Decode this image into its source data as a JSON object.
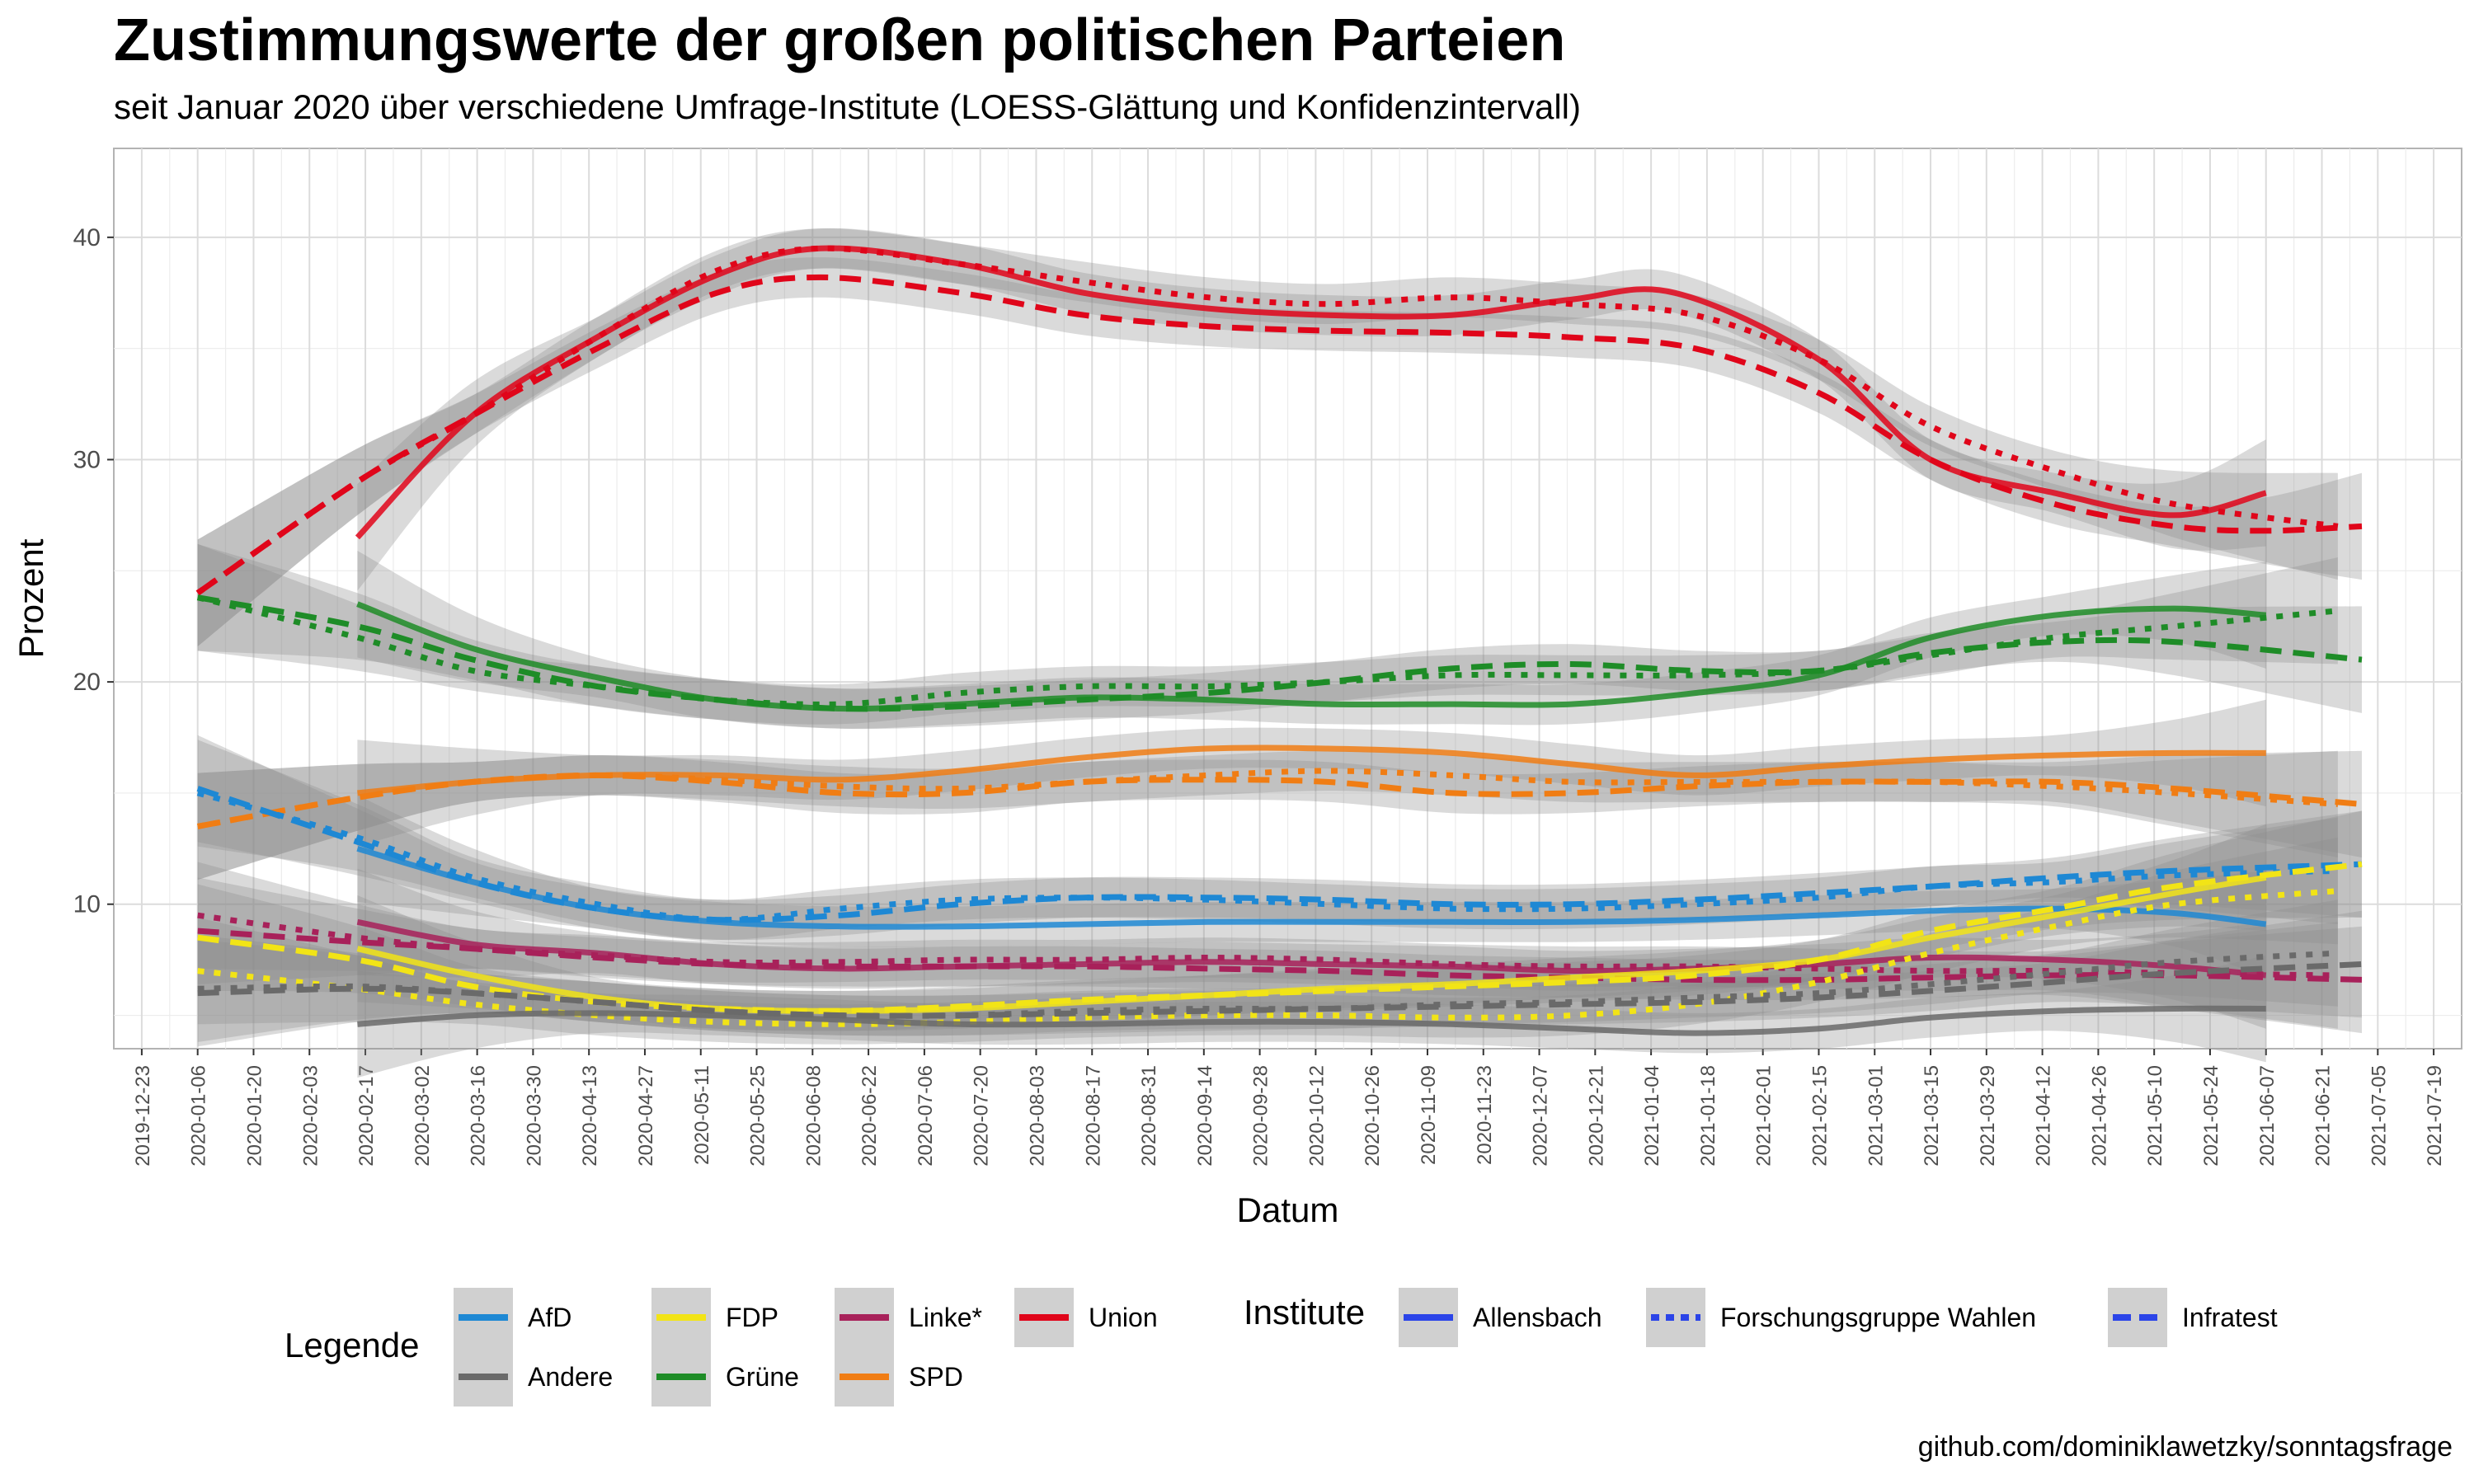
{
  "chart_data": {
    "type": "line",
    "title": "Zustimmungswerte der großen politischen Parteien",
    "subtitle": "seit Januar 2020 über verschiedene Umfrage-Institute (LOESS-Glättung und Konfidenzintervall)",
    "xlabel": "Datum",
    "ylabel": "Prozent",
    "caption": "github.com/dominiklawetzky/sonntagsfrage",
    "xlim": [
      "2019-12-16",
      "2021-07-26"
    ],
    "ylim": [
      3.5,
      44
    ],
    "y_ticks": [
      10,
      20,
      30,
      40
    ],
    "x_ticks": [
      "2019-12-23",
      "2020-01-06",
      "2020-01-20",
      "2020-02-03",
      "2020-02-17",
      "2020-03-02",
      "2020-03-16",
      "2020-03-30",
      "2020-04-13",
      "2020-04-27",
      "2020-05-11",
      "2020-05-25",
      "2020-06-08",
      "2020-06-22",
      "2020-07-06",
      "2020-07-20",
      "2020-08-03",
      "2020-08-17",
      "2020-08-31",
      "2020-09-14",
      "2020-09-28",
      "2020-10-12",
      "2020-10-26",
      "2020-11-09",
      "2020-11-23",
      "2020-12-07",
      "2020-12-21",
      "2021-01-04",
      "2021-01-18",
      "2021-02-01",
      "2021-02-15",
      "2021-03-01",
      "2021-03-15",
      "2021-03-29",
      "2021-04-12",
      "2021-04-26",
      "2021-05-10",
      "2021-05-24",
      "2021-06-07",
      "2021-06-21",
      "2021-07-05",
      "2021-07-19"
    ],
    "grid": true,
    "legend_position": "bottom",
    "legend_party_title": "Legende",
    "legend_institute_title": "Institute",
    "parties": [
      {
        "name": "AfD",
        "color": "#1e88d4"
      },
      {
        "name": "Andere",
        "color": "#6a6a6a"
      },
      {
        "name": "FDP",
        "color": "#f2e416"
      },
      {
        "name": "Grüne",
        "color": "#1e8c27"
      },
      {
        "name": "Linke*",
        "color": "#a8215a"
      },
      {
        "name": "SPD",
        "color": "#f07d14"
      },
      {
        "name": "Union",
        "color": "#e0051a"
      }
    ],
    "institutes": [
      {
        "name": "Allensbach",
        "linetype": "solid",
        "color": "#2b44e8"
      },
      {
        "name": "Forschungsgruppe Wahlen",
        "linetype": "dotted",
        "color": "#2b44e8"
      },
      {
        "name": "Infratest",
        "linetype": "dashed",
        "color": "#2b44e8"
      }
    ],
    "series": [
      {
        "party": "Union",
        "institute": "Allensbach",
        "x": [
          "2020-02-15",
          "2020-03-15",
          "2020-04-15",
          "2020-05-15",
          "2020-06-10",
          "2020-07-15",
          "2020-08-15",
          "2020-09-15",
          "2020-10-15",
          "2020-11-15",
          "2020-12-15",
          "2021-01-10",
          "2021-02-15",
          "2021-03-15",
          "2021-04-15",
          "2021-05-15",
          "2021-06-07"
        ],
        "y": [
          26.5,
          32.0,
          35.5,
          38.3,
          39.5,
          38.8,
          37.5,
          36.8,
          36.5,
          36.5,
          37.2,
          37.5,
          34.5,
          30.0,
          28.5,
          27.5,
          28.5
        ]
      },
      {
        "party": "Union",
        "institute": "Forschungsgruppe Wahlen",
        "x": [
          "2020-01-06",
          "2020-02-15",
          "2020-03-15",
          "2020-04-15",
          "2020-05-15",
          "2020-06-10",
          "2020-07-15",
          "2020-08-15",
          "2020-09-15",
          "2020-10-15",
          "2020-11-15",
          "2020-12-15",
          "2021-01-15",
          "2021-02-15",
          "2021-03-15",
          "2021-04-15",
          "2021-05-15",
          "2021-06-25"
        ],
        "y": [
          24.0,
          29.0,
          32.0,
          35.5,
          38.5,
          39.5,
          38.8,
          38.0,
          37.3,
          37.0,
          37.3,
          37.0,
          36.5,
          34.5,
          31.5,
          29.5,
          28.0,
          27.0
        ]
      },
      {
        "party": "Union",
        "institute": "Infratest",
        "x": [
          "2020-01-06",
          "2020-02-15",
          "2020-03-15",
          "2020-04-15",
          "2020-05-15",
          "2020-06-10",
          "2020-07-15",
          "2020-08-15",
          "2020-09-15",
          "2020-10-15",
          "2020-11-15",
          "2020-12-15",
          "2021-01-15",
          "2021-02-15",
          "2021-03-15",
          "2021-04-15",
          "2021-05-15",
          "2021-06-07",
          "2021-07-01"
        ],
        "y": [
          24.0,
          29.0,
          32.0,
          35.0,
          37.5,
          38.2,
          37.5,
          36.5,
          36.0,
          35.8,
          35.7,
          35.5,
          35.0,
          33.0,
          30.0,
          28.0,
          27.0,
          26.8,
          27.0
        ]
      },
      {
        "party": "Grüne",
        "institute": "Allensbach",
        "x": [
          "2020-02-15",
          "2020-03-15",
          "2020-04-15",
          "2020-05-15",
          "2020-06-15",
          "2020-07-15",
          "2020-08-15",
          "2020-09-15",
          "2020-10-15",
          "2020-11-15",
          "2020-12-15",
          "2021-01-15",
          "2021-02-15",
          "2021-03-15",
          "2021-04-15",
          "2021-05-15",
          "2021-06-07"
        ],
        "y": [
          23.5,
          21.5,
          20.2,
          19.2,
          18.8,
          19.0,
          19.3,
          19.2,
          19.0,
          19.0,
          19.0,
          19.5,
          20.3,
          22.0,
          23.0,
          23.3,
          23.0
        ]
      },
      {
        "party": "Grüne",
        "institute": "Forschungsgruppe Wahlen",
        "x": [
          "2020-01-06",
          "2020-02-15",
          "2020-03-15",
          "2020-04-15",
          "2020-05-15",
          "2020-06-15",
          "2020-07-15",
          "2020-08-15",
          "2020-09-15",
          "2020-10-15",
          "2020-11-15",
          "2020-12-15",
          "2021-01-15",
          "2021-02-15",
          "2021-03-15",
          "2021-04-15",
          "2021-05-15",
          "2021-06-25"
        ],
        "y": [
          23.8,
          22.0,
          20.5,
          19.8,
          19.2,
          19.0,
          19.5,
          19.8,
          19.8,
          20.0,
          20.3,
          20.3,
          20.3,
          20.5,
          21.2,
          22.0,
          22.5,
          23.2
        ]
      },
      {
        "party": "Grüne",
        "institute": "Infratest",
        "x": [
          "2020-01-06",
          "2020-02-15",
          "2020-03-15",
          "2020-04-15",
          "2020-05-15",
          "2020-06-15",
          "2020-07-15",
          "2020-08-15",
          "2020-09-15",
          "2020-10-15",
          "2020-11-15",
          "2020-12-15",
          "2021-01-15",
          "2021-02-15",
          "2021-03-15",
          "2021-04-15",
          "2021-05-15",
          "2021-07-01"
        ],
        "y": [
          23.8,
          22.5,
          21.0,
          19.8,
          19.2,
          18.8,
          18.9,
          19.2,
          19.5,
          20.0,
          20.6,
          20.8,
          20.5,
          20.5,
          21.3,
          21.8,
          21.8,
          21.0
        ]
      },
      {
        "party": "SPD",
        "institute": "Allensbach",
        "x": [
          "2020-02-15",
          "2020-03-15",
          "2020-04-15",
          "2020-05-15",
          "2020-06-15",
          "2020-07-15",
          "2020-08-15",
          "2020-09-15",
          "2020-10-15",
          "2020-11-15",
          "2020-12-15",
          "2021-01-15",
          "2021-02-15",
          "2021-03-15",
          "2021-04-15",
          "2021-05-15",
          "2021-06-07"
        ],
        "y": [
          15.0,
          15.5,
          15.8,
          15.8,
          15.6,
          16.0,
          16.6,
          17.0,
          17.0,
          16.8,
          16.3,
          15.8,
          16.2,
          16.5,
          16.7,
          16.8,
          16.8
        ]
      },
      {
        "party": "SPD",
        "institute": "Forschungsgruppe Wahlen",
        "x": [
          "2020-01-06",
          "2020-02-15",
          "2020-03-15",
          "2020-04-15",
          "2020-05-15",
          "2020-06-15",
          "2020-07-15",
          "2020-08-15",
          "2020-09-15",
          "2020-10-15",
          "2020-11-15",
          "2020-12-15",
          "2021-01-15",
          "2021-02-15",
          "2021-03-15",
          "2021-04-15",
          "2021-05-15",
          "2021-06-25"
        ],
        "y": [
          13.5,
          14.8,
          15.5,
          15.8,
          15.6,
          15.3,
          15.2,
          15.5,
          15.8,
          16.0,
          15.8,
          15.5,
          15.5,
          15.5,
          15.5,
          15.3,
          15.0,
          14.5
        ]
      },
      {
        "party": "SPD",
        "institute": "Infratest",
        "x": [
          "2020-01-06",
          "2020-02-15",
          "2020-03-15",
          "2020-04-15",
          "2020-05-15",
          "2020-06-15",
          "2020-07-15",
          "2020-08-15",
          "2020-09-15",
          "2020-10-15",
          "2020-11-15",
          "2020-12-15",
          "2021-01-15",
          "2021-02-15",
          "2021-03-15",
          "2021-04-15",
          "2021-05-15",
          "2021-07-01"
        ],
        "y": [
          13.5,
          14.8,
          15.5,
          15.8,
          15.5,
          15.0,
          15.0,
          15.5,
          15.6,
          15.5,
          15.0,
          15.0,
          15.3,
          15.5,
          15.5,
          15.5,
          15.2,
          14.5
        ]
      },
      {
        "party": "AfD",
        "institute": "Allensbach",
        "x": [
          "2020-02-15",
          "2020-03-15",
          "2020-04-15",
          "2020-05-15",
          "2020-06-15",
          "2020-07-15",
          "2020-08-15",
          "2020-09-15",
          "2020-10-15",
          "2020-11-15",
          "2020-12-15",
          "2021-01-15",
          "2021-02-15",
          "2021-03-15",
          "2021-04-15",
          "2021-05-15",
          "2021-06-07"
        ],
        "y": [
          12.5,
          11.0,
          9.8,
          9.2,
          9.0,
          9.0,
          9.1,
          9.2,
          9.2,
          9.2,
          9.2,
          9.3,
          9.5,
          9.7,
          9.8,
          9.6,
          9.1
        ]
      },
      {
        "party": "AfD",
        "institute": "Forschungsgruppe Wahlen",
        "x": [
          "2020-01-06",
          "2020-02-15",
          "2020-03-15",
          "2020-04-15",
          "2020-05-15",
          "2020-06-15",
          "2020-07-15",
          "2020-08-15",
          "2020-09-15",
          "2020-10-15",
          "2020-11-15",
          "2020-12-15",
          "2021-01-15",
          "2021-02-15",
          "2021-03-15",
          "2021-04-15",
          "2021-05-15",
          "2021-06-25"
        ],
        "y": [
          15.0,
          13.0,
          11.2,
          10.0,
          9.3,
          9.8,
          10.2,
          10.3,
          10.2,
          10.0,
          9.8,
          9.8,
          10.0,
          10.3,
          10.8,
          11.0,
          11.3,
          11.5
        ]
      },
      {
        "party": "AfD",
        "institute": "Infratest",
        "x": [
          "2020-01-06",
          "2020-02-15",
          "2020-03-15",
          "2020-04-15",
          "2020-05-15",
          "2020-06-15",
          "2020-07-15",
          "2020-08-15",
          "2020-09-15",
          "2020-10-15",
          "2020-11-15",
          "2020-12-15",
          "2021-01-15",
          "2021-02-15",
          "2021-03-15",
          "2021-04-15",
          "2021-05-15",
          "2021-07-01"
        ],
        "y": [
          15.2,
          12.8,
          11.0,
          9.8,
          9.3,
          9.5,
          10.0,
          10.3,
          10.3,
          10.2,
          10.0,
          10.0,
          10.2,
          10.5,
          10.8,
          11.2,
          11.5,
          11.8
        ]
      },
      {
        "party": "Linke*",
        "institute": "Allensbach",
        "x": [
          "2020-02-15",
          "2020-03-15",
          "2020-04-15",
          "2020-05-15",
          "2020-06-15",
          "2020-07-15",
          "2020-08-15",
          "2020-09-15",
          "2020-10-15",
          "2020-11-15",
          "2020-12-15",
          "2021-01-15",
          "2021-02-15",
          "2021-03-15",
          "2021-04-15",
          "2021-05-15",
          "2021-06-07"
        ],
        "y": [
          9.2,
          8.2,
          7.8,
          7.3,
          7.1,
          7.2,
          7.3,
          7.4,
          7.3,
          7.2,
          7.0,
          7.1,
          7.3,
          7.6,
          7.5,
          7.2,
          6.8
        ]
      },
      {
        "party": "Linke*",
        "institute": "Forschungsgruppe Wahlen",
        "x": [
          "2020-01-06",
          "2020-02-15",
          "2020-03-15",
          "2020-04-15",
          "2020-05-15",
          "2020-06-15",
          "2020-07-15",
          "2020-08-15",
          "2020-09-15",
          "2020-10-15",
          "2020-11-15",
          "2020-12-15",
          "2021-01-15",
          "2021-02-15",
          "2021-03-15",
          "2021-04-15",
          "2021-05-15",
          "2021-06-25"
        ],
        "y": [
          9.5,
          8.5,
          8.0,
          7.7,
          7.4,
          7.4,
          7.5,
          7.5,
          7.6,
          7.5,
          7.3,
          7.2,
          7.2,
          7.1,
          7.0,
          7.0,
          6.9,
          6.8
        ]
      },
      {
        "party": "Linke*",
        "institute": "Infratest",
        "x": [
          "2020-01-06",
          "2020-02-15",
          "2020-03-15",
          "2020-04-15",
          "2020-05-15",
          "2020-06-15",
          "2020-07-15",
          "2020-08-15",
          "2020-09-15",
          "2020-10-15",
          "2020-11-15",
          "2020-12-15",
          "2021-01-15",
          "2021-02-15",
          "2021-03-15",
          "2021-04-15",
          "2021-05-15",
          "2021-07-01"
        ],
        "y": [
          8.8,
          8.3,
          8.0,
          7.6,
          7.3,
          7.2,
          7.2,
          7.2,
          7.1,
          7.0,
          6.8,
          6.7,
          6.6,
          6.6,
          6.7,
          6.8,
          6.8,
          6.6
        ]
      },
      {
        "party": "FDP",
        "institute": "Allensbach",
        "x": [
          "2020-02-15",
          "2020-03-15",
          "2020-04-15",
          "2020-05-15",
          "2020-06-15",
          "2020-07-15",
          "2020-08-15",
          "2020-09-15",
          "2020-10-15",
          "2020-11-15",
          "2020-12-15",
          "2021-01-15",
          "2021-02-15",
          "2021-03-15",
          "2021-04-15",
          "2021-05-15",
          "2021-06-07"
        ],
        "y": [
          8.0,
          6.8,
          5.8,
          5.3,
          5.2,
          5.3,
          5.6,
          5.9,
          6.2,
          6.4,
          6.7,
          7.0,
          7.5,
          8.5,
          9.5,
          10.5,
          11.2
        ]
      },
      {
        "party": "FDP",
        "institute": "Forschungsgruppe Wahlen",
        "x": [
          "2020-01-06",
          "2020-02-15",
          "2020-03-15",
          "2020-04-15",
          "2020-05-15",
          "2020-06-15",
          "2020-07-15",
          "2020-08-15",
          "2020-09-15",
          "2020-10-15",
          "2020-11-15",
          "2020-12-15",
          "2021-01-15",
          "2021-02-15",
          "2021-03-15",
          "2021-04-15",
          "2021-05-15",
          "2021-06-25"
        ],
        "y": [
          7.0,
          6.2,
          5.5,
          5.0,
          4.7,
          4.6,
          4.7,
          4.9,
          5.0,
          5.0,
          4.9,
          5.0,
          5.5,
          6.5,
          7.8,
          9.0,
          10.0,
          10.6
        ]
      },
      {
        "party": "FDP",
        "institute": "Infratest",
        "x": [
          "2020-01-06",
          "2020-02-15",
          "2020-03-15",
          "2020-04-15",
          "2020-05-15",
          "2020-06-15",
          "2020-07-15",
          "2020-08-15",
          "2020-09-15",
          "2020-10-15",
          "2020-11-15",
          "2020-12-15",
          "2021-01-15",
          "2021-02-15",
          "2021-03-15",
          "2021-04-15",
          "2021-05-15",
          "2021-07-01"
        ],
        "y": [
          8.5,
          7.5,
          6.3,
          5.6,
          5.3,
          5.2,
          5.4,
          5.7,
          5.9,
          6.1,
          6.3,
          6.5,
          6.8,
          7.5,
          8.8,
          9.8,
          10.8,
          11.8
        ]
      },
      {
        "party": "Andere",
        "institute": "Allensbach",
        "x": [
          "2020-02-15",
          "2020-03-15",
          "2020-04-15",
          "2020-05-15",
          "2020-06-15",
          "2020-07-15",
          "2020-08-15",
          "2020-09-15",
          "2020-10-15",
          "2020-11-15",
          "2020-12-15",
          "2021-01-15",
          "2021-02-15",
          "2021-03-15",
          "2021-04-15",
          "2021-05-15",
          "2021-06-07"
        ],
        "y": [
          4.6,
          5.0,
          5.1,
          5.0,
          4.8,
          4.6,
          4.6,
          4.7,
          4.7,
          4.6,
          4.4,
          4.2,
          4.4,
          4.9,
          5.2,
          5.3,
          5.3
        ]
      },
      {
        "party": "Andere",
        "institute": "Forschungsgruppe Wahlen",
        "x": [
          "2020-01-06",
          "2020-02-15",
          "2020-03-15",
          "2020-04-15",
          "2020-05-15",
          "2020-06-15",
          "2020-07-15",
          "2020-08-15",
          "2020-09-15",
          "2020-10-15",
          "2020-11-15",
          "2020-12-15",
          "2021-01-15",
          "2021-02-15",
          "2021-03-15",
          "2021-04-15",
          "2021-05-15",
          "2021-06-25"
        ],
        "y": [
          6.2,
          6.3,
          6.0,
          5.6,
          5.2,
          5.0,
          5.0,
          5.2,
          5.3,
          5.3,
          5.5,
          5.6,
          5.8,
          6.0,
          6.4,
          6.9,
          7.4,
          7.8
        ]
      },
      {
        "party": "Andere",
        "institute": "Infratest",
        "x": [
          "2020-01-06",
          "2020-02-15",
          "2020-03-15",
          "2020-04-15",
          "2020-05-15",
          "2020-06-15",
          "2020-07-15",
          "2020-08-15",
          "2020-09-15",
          "2020-10-15",
          "2020-11-15",
          "2020-12-15",
          "2021-01-15",
          "2021-02-15",
          "2021-03-15",
          "2021-04-15",
          "2021-05-15",
          "2021-07-01"
        ],
        "y": [
          6.0,
          6.2,
          6.0,
          5.6,
          5.2,
          5.0,
          5.0,
          5.1,
          5.2,
          5.3,
          5.4,
          5.5,
          5.6,
          5.8,
          6.1,
          6.5,
          6.9,
          7.3
        ]
      }
    ]
  }
}
